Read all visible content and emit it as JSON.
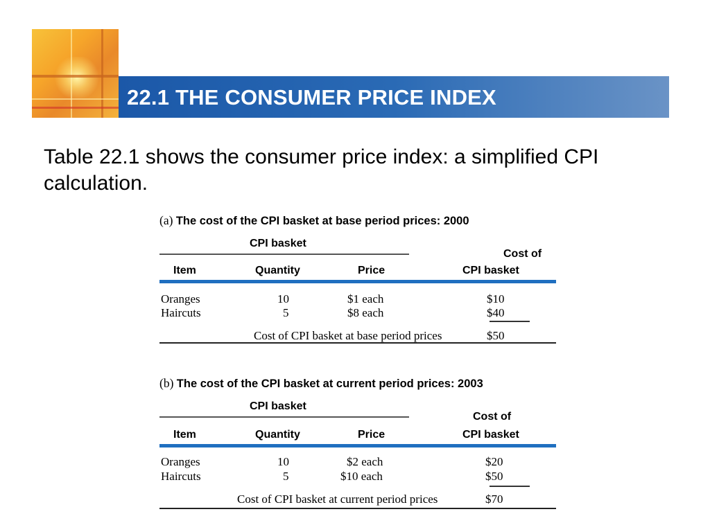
{
  "header": {
    "title": "22.1 THE CONSUMER PRICE INDEX"
  },
  "intro_text": "Table 22.1 shows the consumer price index: a simplified CPI calculation.",
  "tables": [
    {
      "caption_prefix": "(a)",
      "caption": "The cost of the CPI basket at base period prices: 2000",
      "basket_label": "CPI basket",
      "columns": [
        "Item",
        "Quantity",
        "Price"
      ],
      "cost_header_line1": "Cost of",
      "cost_header_line2": "CPI basket",
      "rows": [
        {
          "item": "Oranges",
          "quantity": "10",
          "price": "$1 each",
          "cost": "$10"
        },
        {
          "item": "Haircuts",
          "quantity": "5",
          "price": "$8 each",
          "cost": "$40"
        }
      ],
      "total_label": "Cost of CPI basket at base period prices",
      "total_value": "$50"
    },
    {
      "caption_prefix": "(b)",
      "caption": "The cost of the CPI basket at current period prices: 2003",
      "basket_label": "CPI basket",
      "columns": [
        "Item",
        "Quantity",
        "Price"
      ],
      "cost_header_line1": "Cost of",
      "cost_header_line2": "CPI basket",
      "rows": [
        {
          "item": "Oranges",
          "quantity": "10",
          "price": "$2 each",
          "cost": "$20"
        },
        {
          "item": "Haircuts",
          "quantity": "5",
          "price": "$10 each",
          "cost": "$50"
        }
      ],
      "total_label": "Cost of CPI basket at current period prices",
      "total_value": "$70"
    }
  ]
}
